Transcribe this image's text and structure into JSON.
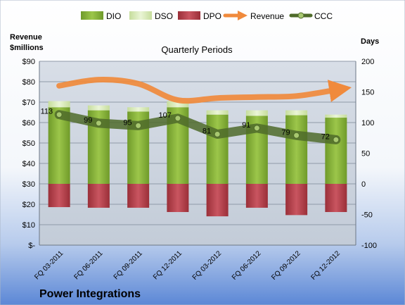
{
  "company": "Power Integrations",
  "chart_data": {
    "type": "bar",
    "title": "Quarterly Periods",
    "categories": [
      "FQ 03-2011",
      "FQ 06-2011",
      "FQ 09-2011",
      "FQ 12-2011",
      "FQ 03-2012",
      "FQ 06-2012",
      "FQ 09-2012",
      "FQ 12-2012"
    ],
    "y_left": {
      "label_line1": "Revenue",
      "label_line2": "$millions",
      "ylim": [
        0,
        90
      ],
      "ticks": [
        0,
        10,
        20,
        30,
        40,
        50,
        60,
        70,
        80,
        90
      ],
      "tick_labels": [
        "$-",
        "$10",
        "$20",
        "$30",
        "$40",
        "$50",
        "$60",
        "$70",
        "$80",
        "$90"
      ]
    },
    "y_right": {
      "label": "Days",
      "ylim": [
        -100,
        200
      ],
      "ticks": [
        -100,
        -50,
        0,
        50,
        100,
        150,
        200
      ],
      "tick_labels": [
        "-100",
        "-50",
        "0",
        "50",
        "100",
        "150",
        "200"
      ]
    },
    "series": [
      {
        "name": "DIO",
        "axis": "right",
        "kind": "stacked-bar",
        "color": "#8bb33a",
        "values": [
          125,
          120,
          118,
          125,
          113,
          111,
          112,
          108
        ]
      },
      {
        "name": "DSO",
        "axis": "right",
        "kind": "stacked-bar",
        "color": "#d9ecb6",
        "values": [
          10,
          8,
          7,
          10,
          7,
          9,
          8,
          5
        ]
      },
      {
        "name": "DPO",
        "axis": "right",
        "kind": "negative-bar",
        "color": "#b8404a",
        "values": [
          -38,
          -39,
          -39,
          -46,
          -53,
          -39,
          -51,
          -46
        ]
      },
      {
        "name": "Revenue",
        "axis": "left",
        "kind": "line",
        "color": "#f08a3c",
        "values": [
          78,
          81,
          79,
          71,
          72,
          72.5,
          73,
          76
        ]
      },
      {
        "name": "CCC",
        "axis": "right",
        "kind": "line",
        "color": "#4f6b2a",
        "values": [
          113,
          99,
          95,
          107,
          81,
          91,
          79,
          72
        ],
        "labels": [
          "113",
          "99",
          "95",
          "107",
          "81",
          "91",
          "79",
          "72"
        ]
      }
    ],
    "legend_position": "top",
    "grid": true,
    "colors": {
      "background_top": "#ffffff",
      "background_bottom": "#5b87d6",
      "plot_bg": "#c9d2de",
      "gridline": "#8f9aa8"
    }
  }
}
